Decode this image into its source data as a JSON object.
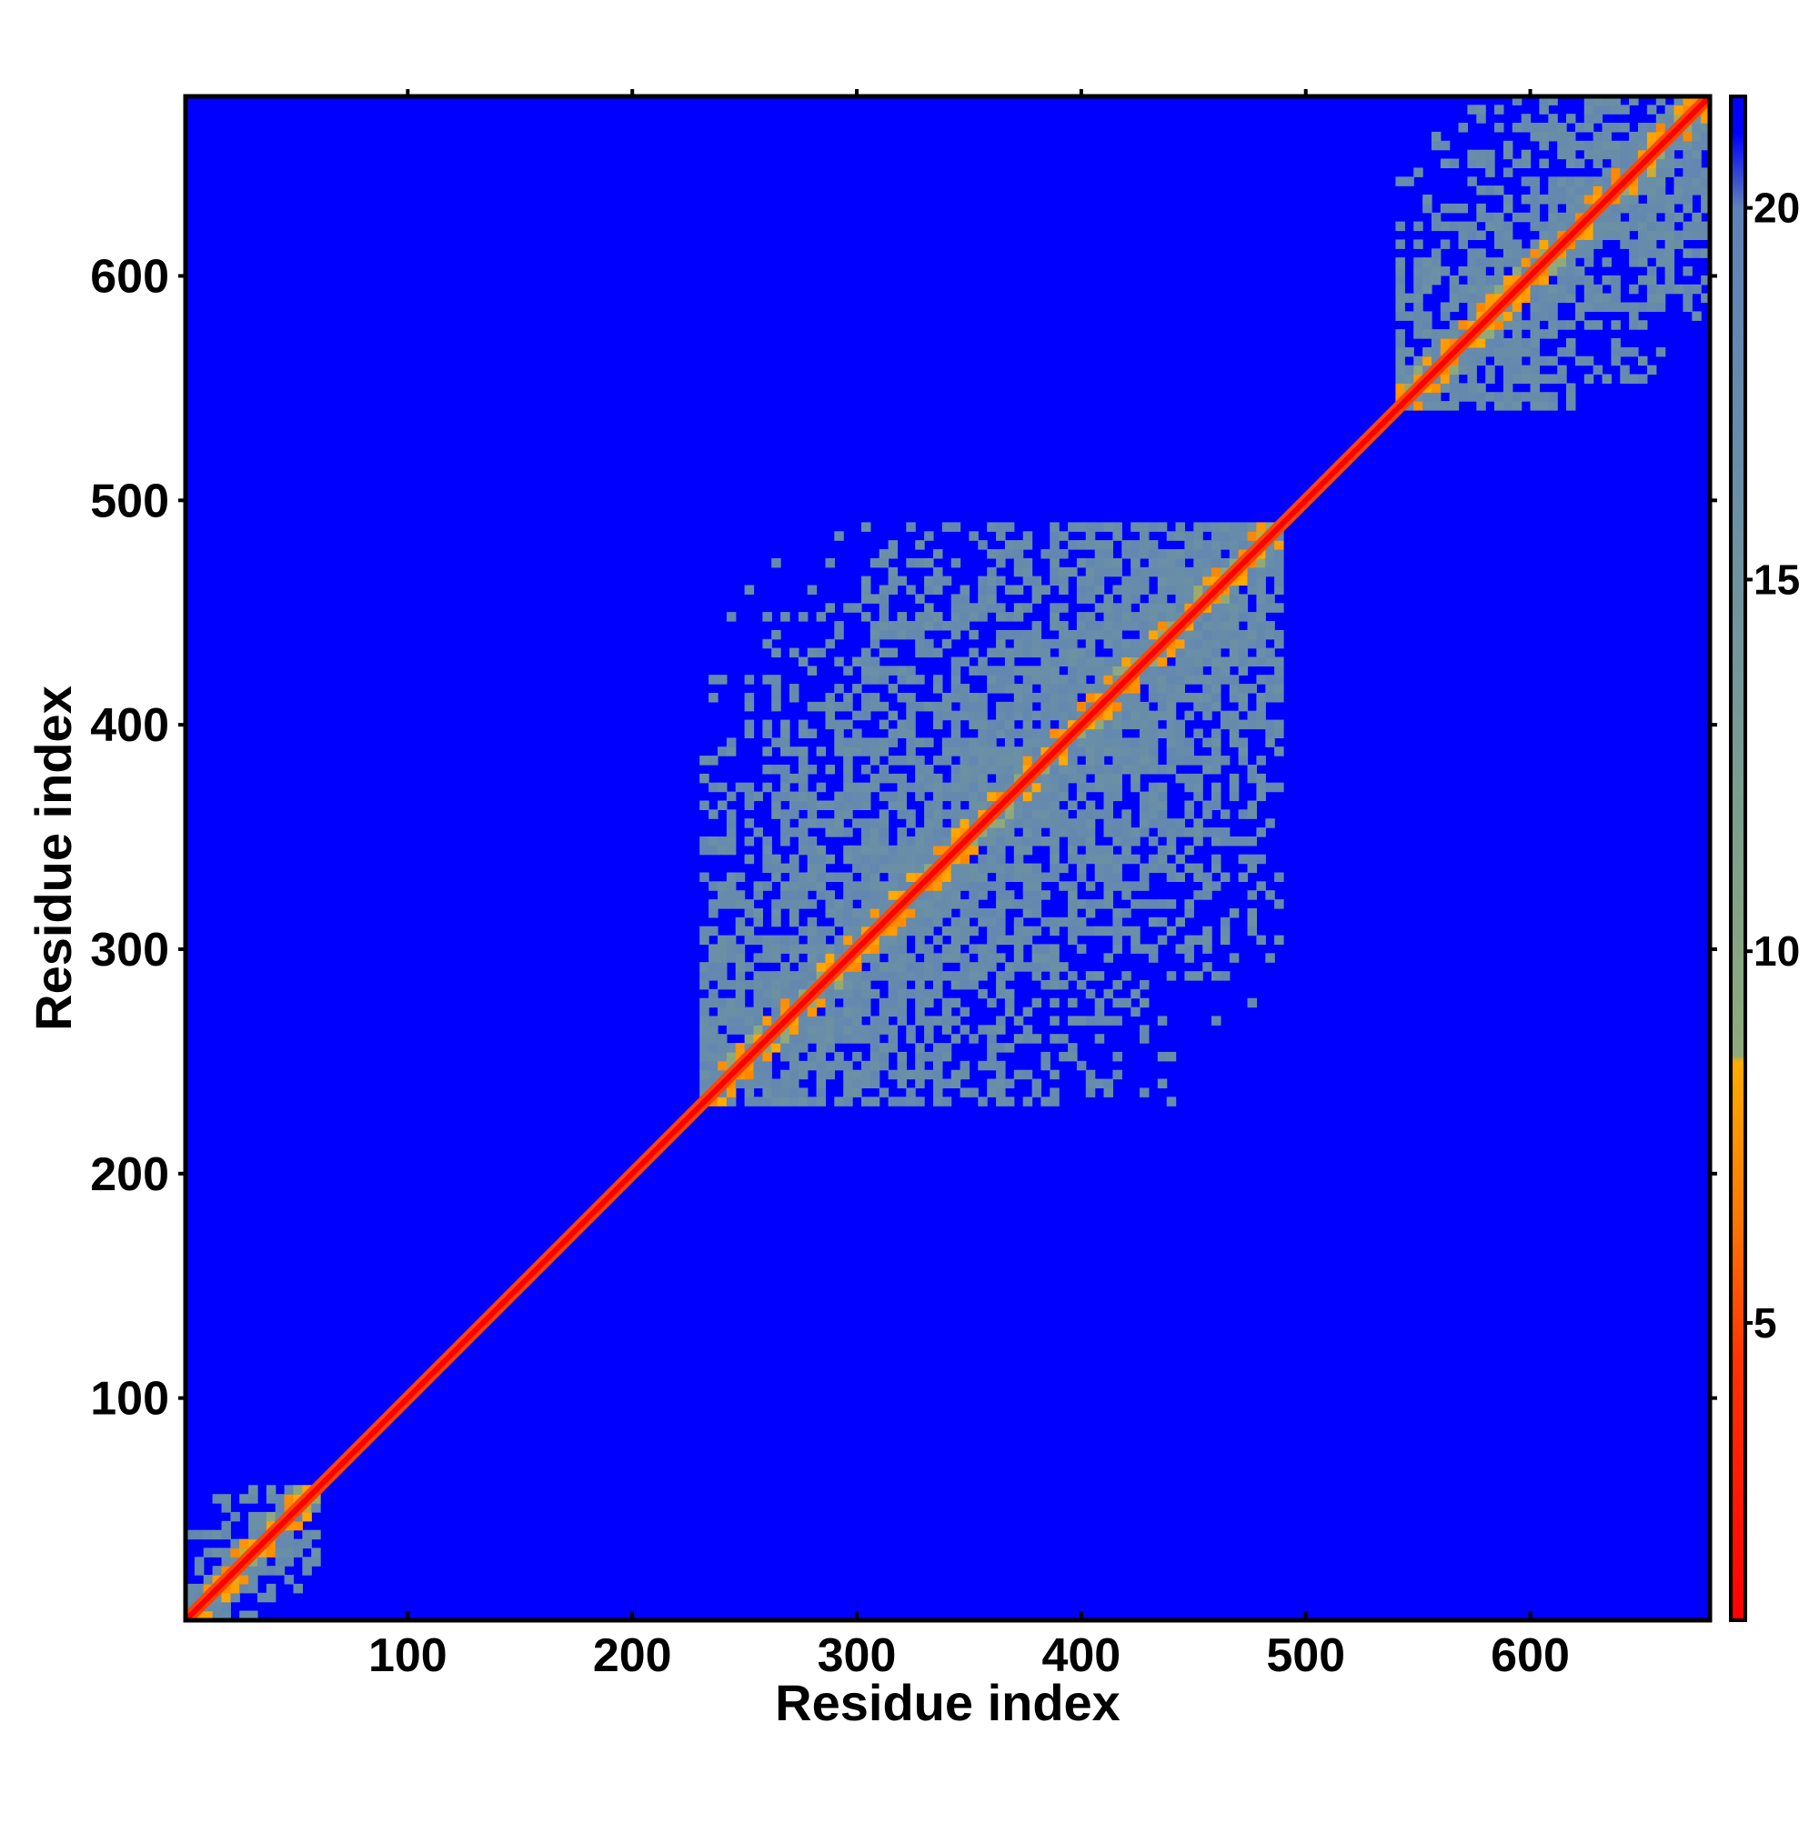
{
  "chart_data": {
    "type": "heatmap",
    "title": "",
    "xlabel": "Residue index",
    "ylabel": "Residue index",
    "xlim": [
      1,
      680
    ],
    "ylim": [
      1,
      680
    ],
    "x_ticks": [
      100,
      200,
      300,
      400,
      500,
      600
    ],
    "y_ticks": [
      100,
      200,
      300,
      400,
      500,
      600
    ],
    "colorbar": {
      "range": [
        1,
        21.5
      ],
      "ticks": [
        5,
        10,
        15,
        20
      ],
      "stops": [
        {
          "value": 1,
          "color": "#ff0000"
        },
        {
          "value": 4.5,
          "color": "#ff3300"
        },
        {
          "value": 6.5,
          "color": "#ff7a00"
        },
        {
          "value": 8.5,
          "color": "#ffaa00"
        },
        {
          "value": 8.6,
          "color": "#8faa7a"
        },
        {
          "value": 12,
          "color": "#7a9e8e"
        },
        {
          "value": 16,
          "color": "#6a8fa6"
        },
        {
          "value": 20,
          "color": "#5e82b8"
        },
        {
          "value": 21,
          "color": "#0000ff"
        },
        {
          "value": 21.5,
          "color": "#0000ff"
        }
      ]
    },
    "background_value": 21.5,
    "background_color": "#0000ff",
    "diagonal": {
      "value": 1,
      "near_value": 5
    },
    "domains": [
      {
        "start": 1,
        "end": 60,
        "value": 17
      },
      {
        "start": 230,
        "end": 490,
        "value": 17
      },
      {
        "start": 540,
        "end": 680,
        "value": 17
      }
    ],
    "grid": false
  },
  "colors": {
    "axis": "#000000",
    "background": "#0000ff",
    "diagonal": "#ff0000",
    "contact": "#6a8fa6",
    "near_contact": "#ff9900"
  }
}
